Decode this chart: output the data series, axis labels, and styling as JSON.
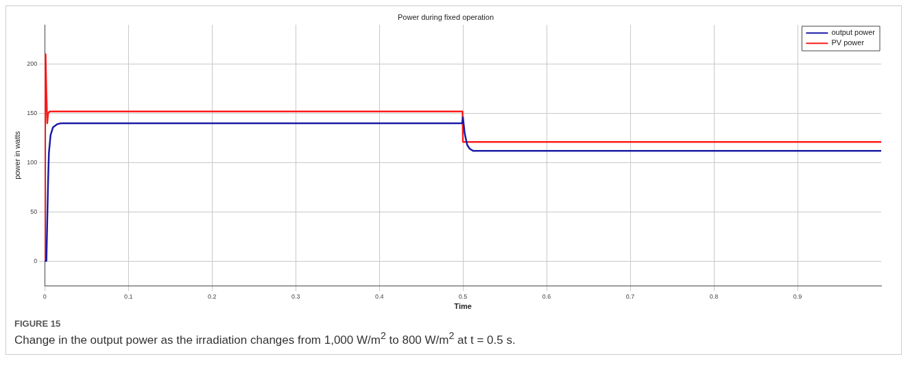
{
  "chart_data": {
    "type": "line",
    "title": "Power during fixed operation",
    "xlabel": "Time",
    "ylabel": "power in watts",
    "xlim": [
      0,
      1
    ],
    "xticks": [
      0,
      0.1,
      0.2,
      0.3,
      0.4,
      0.5,
      0.6,
      0.7,
      0.8,
      0.9
    ],
    "ylim": [
      -25,
      240
    ],
    "yticks": [
      0,
      50,
      100,
      150,
      200
    ],
    "grid": true,
    "legend": "top right",
    "line_style": "solid",
    "marker": "none",
    "series": [
      {
        "name": "output power",
        "color": "#1a1aa6",
        "x": [
          0,
          0.002,
          0.003,
          0.004,
          0.005,
          0.007,
          0.01,
          0.015,
          0.02,
          0.3,
          0.499,
          0.5,
          0.502,
          0.505,
          0.508,
          0.512,
          0.52,
          0.7,
          1
        ],
        "values": [
          0,
          0,
          40,
          80,
          110,
          128,
          136,
          139,
          140,
          140,
          140,
          146,
          130,
          118,
          114,
          112,
          112,
          112,
          112
        ]
      },
      {
        "name": "PV power",
        "color": "#ff1a1a",
        "x": [
          0,
          0.0005,
          0.001,
          0.002,
          0.003,
          0.004,
          0.006,
          0.01,
          0.3,
          0.4995,
          0.5,
          0.5005,
          0.7,
          1
        ],
        "values": [
          0,
          150,
          210,
          170,
          140,
          150,
          152,
          152,
          152,
          152,
          121,
          121,
          121,
          121
        ]
      }
    ],
    "annotations": [
      "FIGURE 15",
      "Change in the output power as the irradiation changes from 1,000 W/m$^{2}$ to 800 W/m$^{2}$ at t = 0.5 s."
    ]
  }
}
